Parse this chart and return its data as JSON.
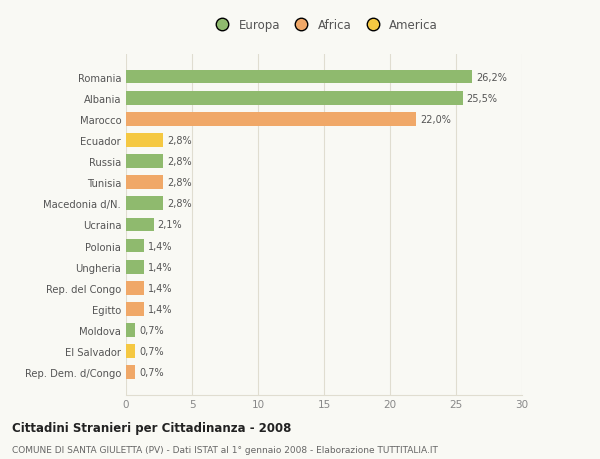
{
  "categories": [
    "Rep. Dem. d/Congo",
    "El Salvador",
    "Moldova",
    "Egitto",
    "Rep. del Congo",
    "Ungheria",
    "Polonia",
    "Ucraina",
    "Macedonia d/N.",
    "Tunisia",
    "Russia",
    "Ecuador",
    "Marocco",
    "Albania",
    "Romania"
  ],
  "values": [
    0.7,
    0.7,
    0.7,
    1.4,
    1.4,
    1.4,
    1.4,
    2.1,
    2.8,
    2.8,
    2.8,
    2.8,
    22.0,
    25.5,
    26.2
  ],
  "colors": [
    "#f0a868",
    "#f5c842",
    "#8fba6e",
    "#f0a868",
    "#f0a868",
    "#8fba6e",
    "#8fba6e",
    "#8fba6e",
    "#8fba6e",
    "#f0a868",
    "#8fba6e",
    "#f5c842",
    "#f0a868",
    "#8fba6e",
    "#8fba6e"
  ],
  "labels": [
    "0,7%",
    "0,7%",
    "0,7%",
    "1,4%",
    "1,4%",
    "1,4%",
    "1,4%",
    "2,1%",
    "2,8%",
    "2,8%",
    "2,8%",
    "2,8%",
    "22,0%",
    "25,5%",
    "26,2%"
  ],
  "legend_labels": [
    "Europa",
    "Africa",
    "America"
  ],
  "legend_colors": [
    "#8fba6e",
    "#f0a868",
    "#f5c842"
  ],
  "title": "Cittadini Stranieri per Cittadinanza - 2008",
  "subtitle": "COMUNE DI SANTA GIULETTA (PV) - Dati ISTAT al 1° gennaio 2008 - Elaborazione TUTTITALIA.IT",
  "xlim": [
    0,
    30
  ],
  "xticks": [
    0,
    5,
    10,
    15,
    20,
    25,
    30
  ],
  "background_color": "#f9f9f4",
  "grid_color": "#e0ddd0",
  "bar_height": 0.65
}
